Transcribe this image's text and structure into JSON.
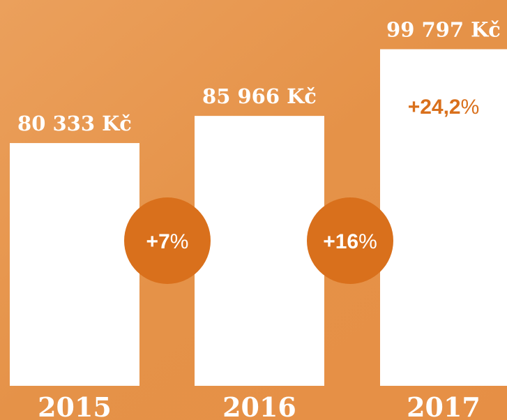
{
  "chart_data": {
    "type": "bar",
    "categories": [
      "2015",
      "2016",
      "2017"
    ],
    "values": [
      80333,
      85966,
      99797
    ],
    "value_labels": [
      "80 333 Kč",
      "85 966 Kč",
      "99 797 Kč"
    ],
    "color": "#ffffff",
    "ylim": [
      30000,
      110000
    ],
    "changes": [
      {
        "value": 7,
        "label": "+7"
      },
      {
        "value": 16,
        "label": "+16"
      },
      {
        "value": 24.2,
        "label": "+24,2"
      }
    ],
    "change_unit": "%",
    "badge_color": "#d9701c"
  }
}
